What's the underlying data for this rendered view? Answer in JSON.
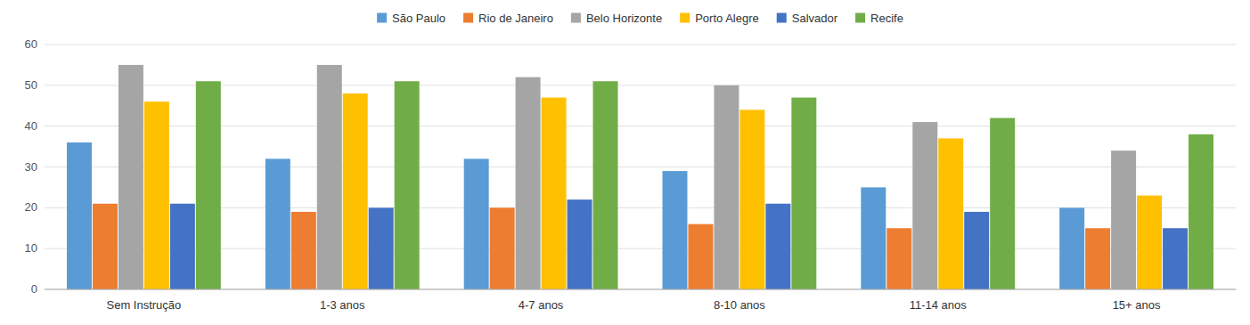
{
  "chart_data": {
    "type": "bar",
    "categories": [
      "Sem Instrução",
      "1-3 anos",
      "4-7 anos",
      "8-10 anos",
      "11-14 anos",
      "15+ anos"
    ],
    "series": [
      {
        "name": "São Paulo",
        "color": "#5B9BD5",
        "values": [
          36,
          32,
          32,
          29,
          25,
          20
        ]
      },
      {
        "name": "Rio de Janeiro",
        "color": "#ED7D31",
        "values": [
          21,
          19,
          20,
          16,
          15,
          15
        ]
      },
      {
        "name": "Belo Horizonte",
        "color": "#A5A5A5",
        "values": [
          55,
          55,
          52,
          50,
          41,
          34
        ]
      },
      {
        "name": "Porto Alegre",
        "color": "#FFC000",
        "values": [
          46,
          48,
          47,
          44,
          37,
          23
        ]
      },
      {
        "name": "Salvador",
        "color": "#4472C4",
        "values": [
          21,
          20,
          22,
          21,
          19,
          15
        ]
      },
      {
        "name": "Recife",
        "color": "#70AD47",
        "values": [
          51,
          51,
          51,
          47,
          42,
          38
        ]
      }
    ],
    "ylim": [
      0,
      60
    ],
    "yticks": [
      0,
      10,
      20,
      30,
      40,
      50,
      60
    ],
    "grid": true,
    "legend": "top"
  }
}
